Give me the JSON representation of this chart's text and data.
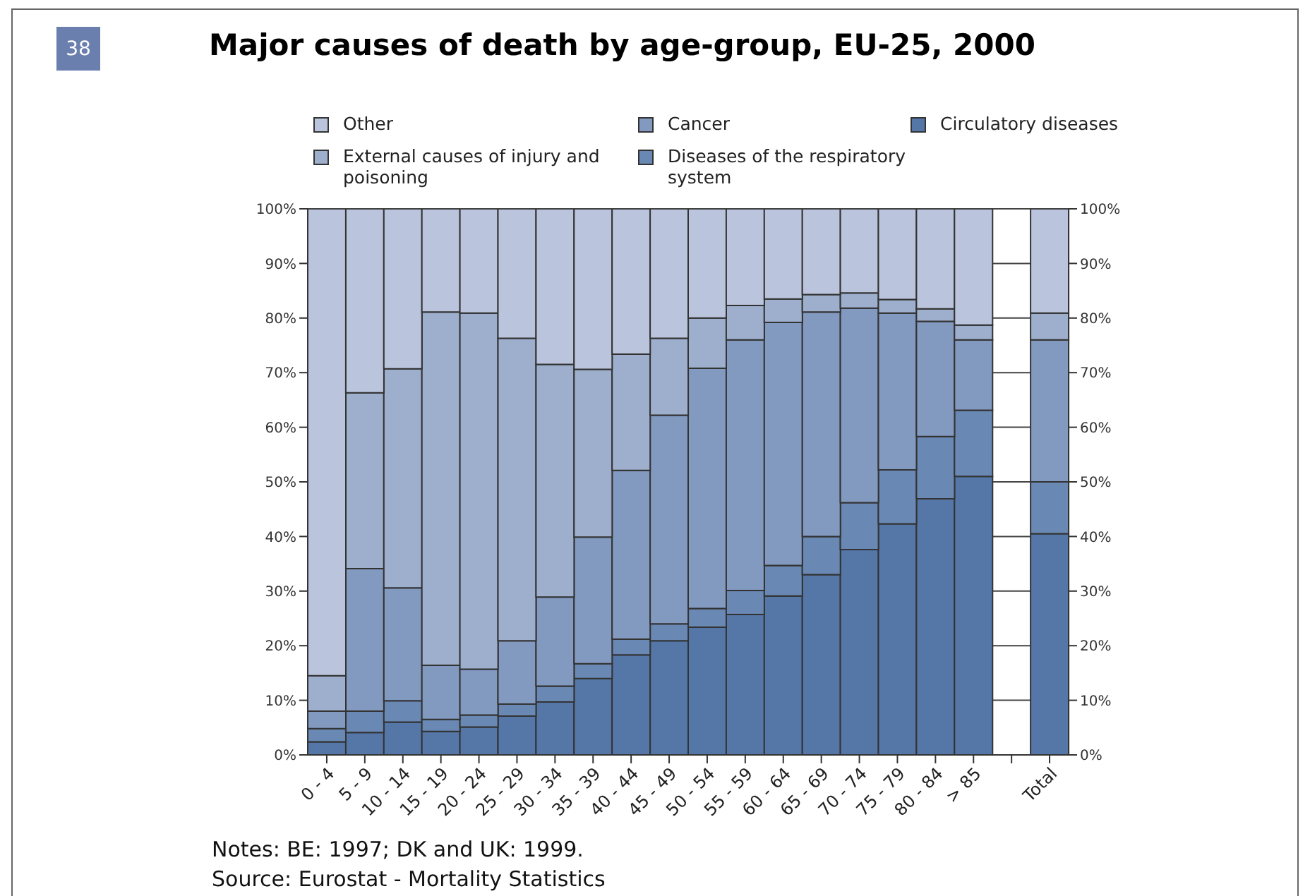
{
  "chart_data": {
    "type": "bar",
    "stacked": true,
    "title": "Major causes of death by age-group, EU-25, 2000",
    "annotations": [
      "38",
      "Notes: BE: 1997; DK and UK: 1999.",
      "Source: Eurostat - Mortality Statistics"
    ],
    "categories": [
      "0 - 4",
      "5 - 9",
      "10 - 14",
      "15 - 19",
      "20 - 24",
      "25 - 29",
      "30 - 34",
      "35 - 39",
      "40 - 44",
      "45 - 49",
      "50 - 54",
      "55 - 59",
      "60 - 64",
      "65 - 69",
      "70 - 74",
      "75 - 79",
      "80 - 84",
      "> 85",
      null,
      "Total"
    ],
    "series": [
      {
        "name": "Circulatory diseases",
        "color": "#5577a8",
        "values": [
          2.4,
          4.1,
          6.0,
          4.3,
          5.1,
          7.1,
          9.7,
          14.0,
          18.3,
          20.9,
          23.4,
          25.7,
          29.1,
          33.0,
          37.6,
          42.3,
          46.9,
          51.0,
          null,
          40.5
        ]
      },
      {
        "name": "Diseases of the respiratory system",
        "color": "#6a88b4",
        "values": [
          2.4,
          3.9,
          3.9,
          2.2,
          2.2,
          2.2,
          2.9,
          2.7,
          2.9,
          3.1,
          3.4,
          4.4,
          5.6,
          7.0,
          8.6,
          9.9,
          11.4,
          12.1,
          null,
          9.5
        ]
      },
      {
        "name": "Cancer",
        "color": "#8299c0",
        "values": [
          3.2,
          26.1,
          20.7,
          9.9,
          8.4,
          11.6,
          16.3,
          23.2,
          30.9,
          38.2,
          44.0,
          45.9,
          44.5,
          41.1,
          35.6,
          28.7,
          21.1,
          12.9,
          null,
          26.0
        ]
      },
      {
        "name": "External causes of injury and poisoning",
        "color": "#9dafcd",
        "values": [
          6.5,
          32.2,
          40.1,
          64.7,
          65.2,
          55.4,
          42.6,
          30.7,
          21.3,
          14.1,
          9.2,
          6.3,
          4.3,
          3.2,
          2.8,
          2.5,
          2.3,
          2.7,
          null,
          4.9
        ]
      },
      {
        "name": "Other",
        "color": "#bac4dc",
        "values": [
          85.5,
          33.7,
          29.3,
          18.9,
          19.1,
          23.7,
          28.5,
          29.4,
          26.6,
          23.7,
          20.0,
          17.7,
          16.5,
          15.7,
          15.4,
          16.6,
          18.3,
          21.3,
          null,
          19.1
        ]
      }
    ],
    "ylim": [
      0,
      100
    ],
    "yticks": [
      {
        "value": 0,
        "label": "0%"
      },
      {
        "value": 10,
        "label": "10%"
      },
      {
        "value": 20,
        "label": "20%"
      },
      {
        "value": 30,
        "label": "30%"
      },
      {
        "value": 40,
        "label": "40%"
      },
      {
        "value": 50,
        "label": "50%"
      },
      {
        "value": 60,
        "label": "60%"
      },
      {
        "value": 70,
        "label": "70%"
      },
      {
        "value": 80,
        "label": "80%"
      },
      {
        "value": 90,
        "label": "90%"
      },
      {
        "value": 100,
        "label": "100%"
      }
    ],
    "y2lim": [
      0,
      100
    ],
    "y2ticks": [
      {
        "value": 0,
        "label": "0%"
      },
      {
        "value": 10,
        "label": "10%"
      },
      {
        "value": 20,
        "label": "20%"
      },
      {
        "value": 30,
        "label": "30%"
      },
      {
        "value": 40,
        "label": "40%"
      },
      {
        "value": 50,
        "label": "50%"
      },
      {
        "value": 60,
        "label": "60%"
      },
      {
        "value": 70,
        "label": "70%"
      },
      {
        "value": 80,
        "label": "80%"
      },
      {
        "value": 90,
        "label": "90%"
      },
      {
        "value": 100,
        "label": "100%"
      }
    ],
    "grid": "y",
    "legend": "top"
  }
}
